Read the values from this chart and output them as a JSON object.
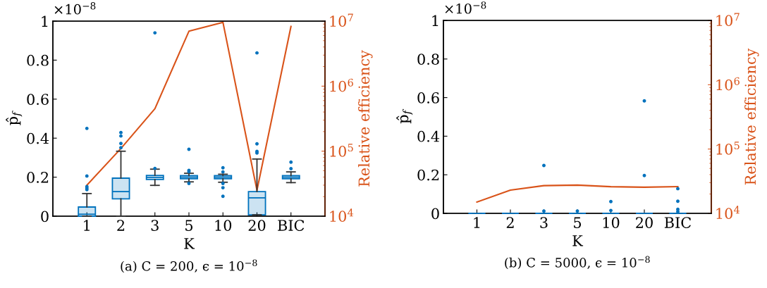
{
  "chart_data": [
    {
      "type": "box",
      "title": "(a) C = 200, ϵ = 10$^{−8}$",
      "xlabel": "K",
      "ylabel": "p̂$_{f}$",
      "y2label": "Relative efficiency",
      "categories": [
        "1",
        "2",
        "3",
        "5",
        "10",
        "20",
        "BIC"
      ],
      "ylim": [
        0,
        1
      ],
      "yticks": [
        0,
        0.2,
        0.4,
        0.6,
        0.8,
        1
      ],
      "y2lim": [
        10000,
        10000000
      ],
      "y2ticks": [
        {
          "value": 10000,
          "label": "10$^{4}$"
        },
        {
          "value": 100000,
          "label": "10$^{5}$"
        },
        {
          "value": 1000000,
          "label": "10$^{6}$"
        },
        {
          "value": 10000000,
          "label": "10$^{7}$"
        }
      ],
      "log": "y2",
      "grid": false,
      "legend": false,
      "annotations": [
        "×10$^{−8}$"
      ],
      "series": [
        {
          "color": "#0072bd",
          "boxes": [
            {
              "low": 0,
              "q1": 0,
              "median": 0.01,
              "q3": 0.047,
              "high": 0.116,
              "outliers": [
                0.45,
                0.206,
                0.152,
                0.144,
                0.136
              ]
            },
            {
              "low": 0,
              "q1": 0.089,
              "median": 0.126,
              "q3": 0.195,
              "high": 0.333,
              "outliers": [
                0.429,
                0.411,
                0.373,
                0.351
              ]
            },
            {
              "low": 0.158,
              "q1": 0.188,
              "median": 0.199,
              "q3": 0.209,
              "high": 0.241,
              "outliers": [
                0.245,
                0.94
              ]
            },
            {
              "low": 0.176,
              "q1": 0.192,
              "median": 0.2,
              "q3": 0.208,
              "high": 0.22,
              "outliers": [
                0.235,
                0.228,
                0.168,
                0.343
              ]
            },
            {
              "low": 0.174,
              "q1": 0.192,
              "median": 0.2,
              "q3": 0.208,
              "high": 0.215,
              "outliers": [
                0.248,
                0.227,
                0.168,
                0.146,
                0.102
              ]
            },
            {
              "low": 0.007,
              "q1": 0.007,
              "median": 0.094,
              "q3": 0.126,
              "high": 0.293,
              "outliers": [
                0.371,
                0.332,
                0.324,
                0.837
              ]
            },
            {
              "low": 0.172,
              "q1": 0.192,
              "median": 0.2,
              "q3": 0.208,
              "high": 0.227,
              "outliers": [
                0.277,
                0.244
              ]
            }
          ]
        },
        {
          "type": "line",
          "axis": "y2",
          "color": "#d95319",
          "values": [
            30000,
            110000,
            450000,
            7000000,
            9600000,
            25000,
            8300000
          ]
        }
      ]
    },
    {
      "type": "box",
      "title": "(b) C = 5000, ϵ = 10$^{−8}$",
      "xlabel": "K",
      "ylabel": "p̂$_{f}$",
      "y2label": "Relative efficiency",
      "categories": [
        "1",
        "2",
        "3",
        "5",
        "10",
        "20",
        "BIC"
      ],
      "ylim": [
        0,
        1
      ],
      "yticks": [
        0,
        0.2,
        0.4,
        0.6,
        0.8,
        1
      ],
      "y2lim": [
        10000,
        10000000
      ],
      "y2ticks": [
        {
          "value": 10000,
          "label": "10$^{4}$"
        },
        {
          "value": 100000,
          "label": "10$^{5}$"
        },
        {
          "value": 1000000,
          "label": "10$^{6}$"
        },
        {
          "value": 10000000,
          "label": "10$^{7}$"
        }
      ],
      "log": "y2",
      "grid": false,
      "legend": false,
      "annotations": [
        "×10$^{−8}$"
      ],
      "series": [
        {
          "color": "#0072bd",
          "boxes": [
            {
              "low": 0,
              "q1": 0,
              "median": 0,
              "q3": 0,
              "high": 0
            },
            {
              "low": 0,
              "q1": 0,
              "median": 0,
              "q3": 0,
              "high": 0
            },
            {
              "low": 0,
              "q1": 0,
              "median": 0,
              "q3": 0,
              "high": 0,
              "outliers": [
                0.248,
                0.012
              ]
            },
            {
              "low": 0,
              "q1": 0,
              "median": 0,
              "q3": 0,
              "high": 0,
              "outliers": [
                0.012
              ]
            },
            {
              "low": 0,
              "q1": 0,
              "median": 0,
              "q3": 0,
              "high": 0,
              "outliers": [
                0.061,
                0.015
              ]
            },
            {
              "low": 0,
              "q1": 0,
              "median": 0,
              "q3": 0,
              "high": 0,
              "outliers": [
                0.583,
                0.196
              ]
            },
            {
              "low": 0,
              "q1": 0,
              "median": 0,
              "q3": 0,
              "high": 0,
              "outliers": [
                0.128,
                0.063,
                0.021,
                0.009
              ]
            }
          ]
        },
        {
          "type": "line",
          "axis": "y2",
          "color": "#d95319",
          "values": [
            15000,
            23000,
            27000,
            27500,
            26000,
            25500,
            26000
          ]
        }
      ]
    }
  ]
}
